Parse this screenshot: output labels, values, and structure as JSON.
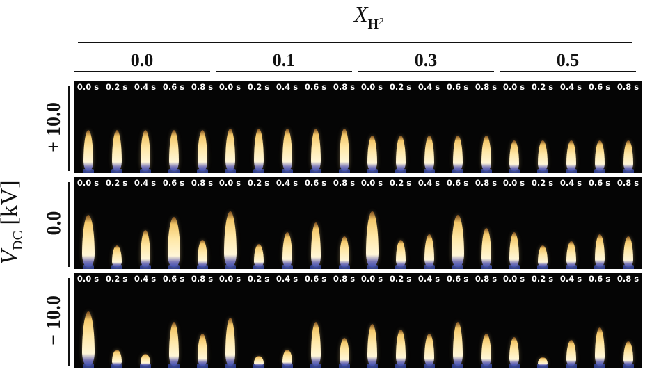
{
  "header": {
    "x_symbol": "X",
    "x_sub": "H",
    "x_sub2": "2"
  },
  "y_axis": {
    "symbol": "V",
    "sub": "DC",
    "unit": " [kV]"
  },
  "columns": [
    "0.0",
    "0.1",
    "0.3",
    "0.5"
  ],
  "rows": [
    "+ 10.0",
    "0.0",
    "− 10.0"
  ],
  "time_labels": [
    "0.0 s",
    "0.2 s",
    "0.4 s",
    "0.6 s",
    "0.8 s"
  ],
  "panel_background": "#050505",
  "flame_color": "#fff6d8",
  "burner_color": "#2a3a8a",
  "flame_heights": [
    [
      [
        0.53,
        0.53,
        0.53,
        0.53,
        0.53
      ],
      [
        0.55,
        0.55,
        0.55,
        0.55,
        0.55
      ],
      [
        0.46,
        0.46,
        0.46,
        0.46,
        0.46
      ],
      [
        0.4,
        0.4,
        0.4,
        0.4,
        0.4
      ]
    ],
    [
      [
        0.68,
        0.28,
        0.48,
        0.65,
        0.35
      ],
      [
        0.72,
        0.3,
        0.45,
        0.58,
        0.4
      ],
      [
        0.72,
        0.35,
        0.42,
        0.68,
        0.5
      ],
      [
        0.45,
        0.28,
        0.33,
        0.42,
        0.4
      ]
    ],
    [
      [
        0.68,
        0.2,
        0.15,
        0.55,
        0.4
      ],
      [
        0.6,
        0.12,
        0.2,
        0.55,
        0.35
      ],
      [
        0.52,
        0.45,
        0.4,
        0.55,
        0.4
      ],
      [
        0.36,
        0.1,
        0.32,
        0.48,
        0.3
      ]
    ]
  ]
}
